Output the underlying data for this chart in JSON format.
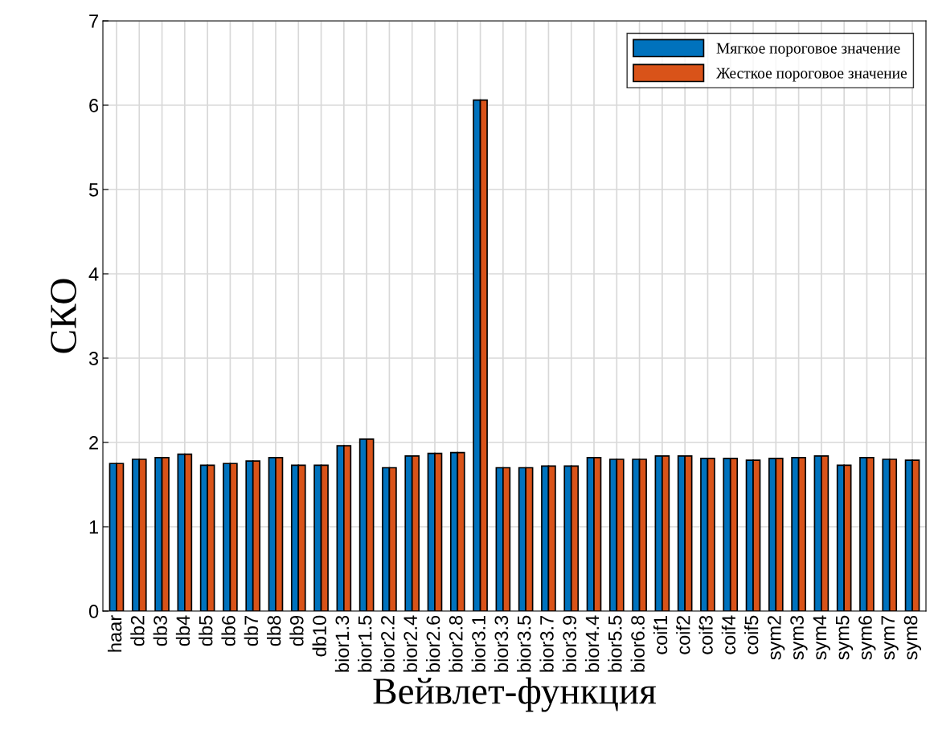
{
  "chart_data": {
    "type": "bar",
    "xlabel": "Вейвлет-функция",
    "ylabel": "СКО",
    "categories": [
      "haar",
      "db2",
      "db3",
      "db4",
      "db5",
      "db6",
      "db7",
      "db8",
      "db9",
      "db10",
      "bior1.3",
      "bior1.5",
      "bior2.2",
      "bior2.4",
      "bior2.6",
      "bior2.8",
      "bior3.1",
      "bior3.3",
      "bior3.5",
      "bior3.7",
      "bior3.9",
      "bior4.4",
      "bior5.5",
      "bior6.8",
      "coif1",
      "coif2",
      "coif3",
      "coif4",
      "coif5",
      "sym2",
      "sym3",
      "sym4",
      "sym5",
      "sym6",
      "sym7",
      "sym8"
    ],
    "series": [
      {
        "name": "Мягкое пороговое значение",
        "color": "#0072bd",
        "values": [
          1.75,
          1.8,
          1.82,
          1.86,
          1.73,
          1.75,
          1.78,
          1.82,
          1.73,
          1.73,
          1.96,
          2.04,
          1.7,
          1.84,
          1.87,
          1.88,
          6.06,
          1.7,
          1.7,
          1.72,
          1.72,
          1.82,
          1.8,
          1.8,
          1.84,
          1.84,
          1.81,
          1.81,
          1.79,
          1.81,
          1.82,
          1.84,
          1.73,
          1.82,
          1.8,
          1.79
        ]
      },
      {
        "name": "Жесткое пороговое значение",
        "color": "#d95319",
        "values": [
          1.75,
          1.8,
          1.82,
          1.86,
          1.73,
          1.75,
          1.78,
          1.82,
          1.73,
          1.73,
          1.96,
          2.04,
          1.7,
          1.84,
          1.87,
          1.88,
          6.06,
          1.7,
          1.7,
          1.72,
          1.72,
          1.82,
          1.8,
          1.8,
          1.84,
          1.84,
          1.81,
          1.81,
          1.79,
          1.81,
          1.82,
          1.84,
          1.73,
          1.82,
          1.8,
          1.79
        ]
      }
    ],
    "ylim": [
      0,
      7
    ],
    "yticks": [
      0,
      1,
      2,
      3,
      4,
      5,
      6,
      7
    ],
    "grid": true,
    "legend": "top right"
  }
}
